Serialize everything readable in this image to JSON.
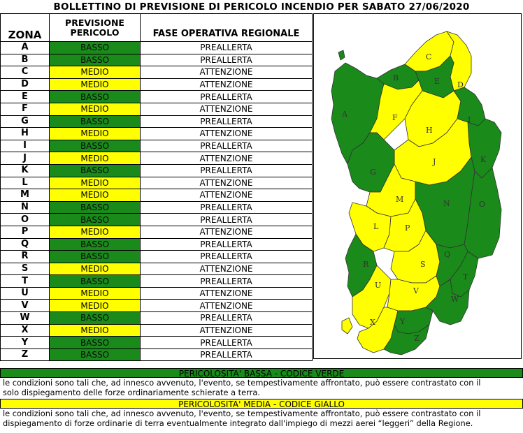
{
  "title": "BOLLETTINO DI PREVISIONE DI PERICOLO INCENDIO PER SABATO 27/06/2020",
  "headers": {
    "zona": "ZONA",
    "previsione_line1": "PREVISIONE",
    "previsione_line2": "PERICOLO",
    "fase": "FASE OPERATIVA REGIONALE"
  },
  "colors": {
    "basso": "#1a8a1a",
    "medio": "#ffff00"
  },
  "zones": [
    {
      "zona": "A",
      "pericolo": "BASSO",
      "fase": "PREALLERTA"
    },
    {
      "zona": "B",
      "pericolo": "BASSO",
      "fase": "PREALLERTA"
    },
    {
      "zona": "C",
      "pericolo": "MEDIO",
      "fase": "ATTENZIONE"
    },
    {
      "zona": "D",
      "pericolo": "MEDIO",
      "fase": "ATTENZIONE"
    },
    {
      "zona": "E",
      "pericolo": "BASSO",
      "fase": "PREALLERTA"
    },
    {
      "zona": "F",
      "pericolo": "MEDIO",
      "fase": "ATTENZIONE"
    },
    {
      "zona": "G",
      "pericolo": "BASSO",
      "fase": "PREALLERTA"
    },
    {
      "zona": "H",
      "pericolo": "MEDIO",
      "fase": "ATTENZIONE"
    },
    {
      "zona": "I",
      "pericolo": "BASSO",
      "fase": "PREALLERTA"
    },
    {
      "zona": "J",
      "pericolo": "MEDIO",
      "fase": "ATTENZIONE"
    },
    {
      "zona": "K",
      "pericolo": "BASSO",
      "fase": "PREALLERTA"
    },
    {
      "zona": "L",
      "pericolo": "MEDIO",
      "fase": "ATTENZIONE"
    },
    {
      "zona": "M",
      "pericolo": "MEDIO",
      "fase": "ATTENZIONE"
    },
    {
      "zona": "N",
      "pericolo": "BASSO",
      "fase": "PREALLERTA"
    },
    {
      "zona": "O",
      "pericolo": "BASSO",
      "fase": "PREALLERTA"
    },
    {
      "zona": "P",
      "pericolo": "MEDIO",
      "fase": "ATTENZIONE"
    },
    {
      "zona": "Q",
      "pericolo": "BASSO",
      "fase": "PREALLERTA"
    },
    {
      "zona": "R",
      "pericolo": "BASSO",
      "fase": "PREALLERTA"
    },
    {
      "zona": "S",
      "pericolo": "MEDIO",
      "fase": "ATTENZIONE"
    },
    {
      "zona": "T",
      "pericolo": "BASSO",
      "fase": "PREALLERTA"
    },
    {
      "zona": "U",
      "pericolo": "MEDIO",
      "fase": "ATTENZIONE"
    },
    {
      "zona": "V",
      "pericolo": "MEDIO",
      "fase": "ATTENZIONE"
    },
    {
      "zona": "W",
      "pericolo": "BASSO",
      "fase": "PREALLERTA"
    },
    {
      "zona": "X",
      "pericolo": "MEDIO",
      "fase": "ATTENZIONE"
    },
    {
      "zona": "Y",
      "pericolo": "BASSO",
      "fase": "PREALLERTA"
    },
    {
      "zona": "Z",
      "pericolo": "BASSO",
      "fase": "PREALLERTA"
    }
  ],
  "map_labels": [
    "A",
    "B",
    "C",
    "D",
    "E",
    "F",
    "G",
    "H",
    "I",
    "J",
    "K",
    "L",
    "M",
    "N",
    "O",
    "P",
    "Q",
    "R",
    "S",
    "T",
    "U",
    "V",
    "W",
    "X",
    "Y",
    "Z"
  ],
  "legend": {
    "bassa_title": "PERICOLOSITA' BASSA - CODICE VERDE",
    "bassa_line1": "le condizioni sono tali che, ad innesco avvenuto, l'evento, se tempestivamente affrontato, può essere contrastato con il",
    "bassa_line2": "solo dispiegamento delle forze ordinariamente schierate a terra.",
    "media_title": "PERICOLOSITA' MEDIA - CODICE GIALLO",
    "media_line1": "le condizioni sono tali che, ad innesco avvenuto, l'evento, se tempestivamente affrontato, può essere contrastato con il",
    "media_line2": "dispiegamento di forze ordinarie di terra eventualmente integrato dall'impiego di mezzi aerei “leggeri” della Regione."
  }
}
